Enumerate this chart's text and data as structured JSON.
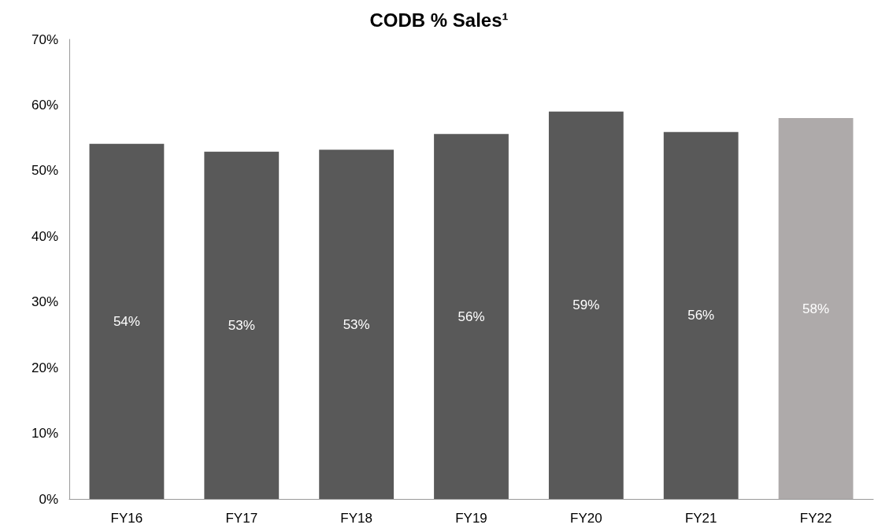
{
  "chart_data": {
    "type": "bar",
    "title": "CODB % Sales¹",
    "categories": [
      "FY16",
      "FY17",
      "FY18",
      "FY19",
      "FY20",
      "FY21",
      "FY22"
    ],
    "values": [
      54.1,
      52.9,
      53.2,
      55.6,
      59.0,
      55.9,
      58.0
    ],
    "colors": [
      "#595959",
      "#595959",
      "#595959",
      "#595959",
      "#595959",
      "#595959",
      "#aeaaaa"
    ],
    "value_labels": [
      "54%",
      "53%",
      "53%",
      "56%",
      "59%",
      "56%",
      "58%"
    ],
    "ylim": [
      0,
      70
    ],
    "yticks": [
      {
        "value": 0,
        "label": "0%"
      },
      {
        "value": 10,
        "label": "10%"
      },
      {
        "value": 20,
        "label": "20%"
      },
      {
        "value": 30,
        "label": "30%"
      },
      {
        "value": 40,
        "label": "40%"
      },
      {
        "value": 50,
        "label": "50%"
      },
      {
        "value": 60,
        "label": "60%"
      },
      {
        "value": 70,
        "label": "70%"
      }
    ],
    "grid": false
  }
}
